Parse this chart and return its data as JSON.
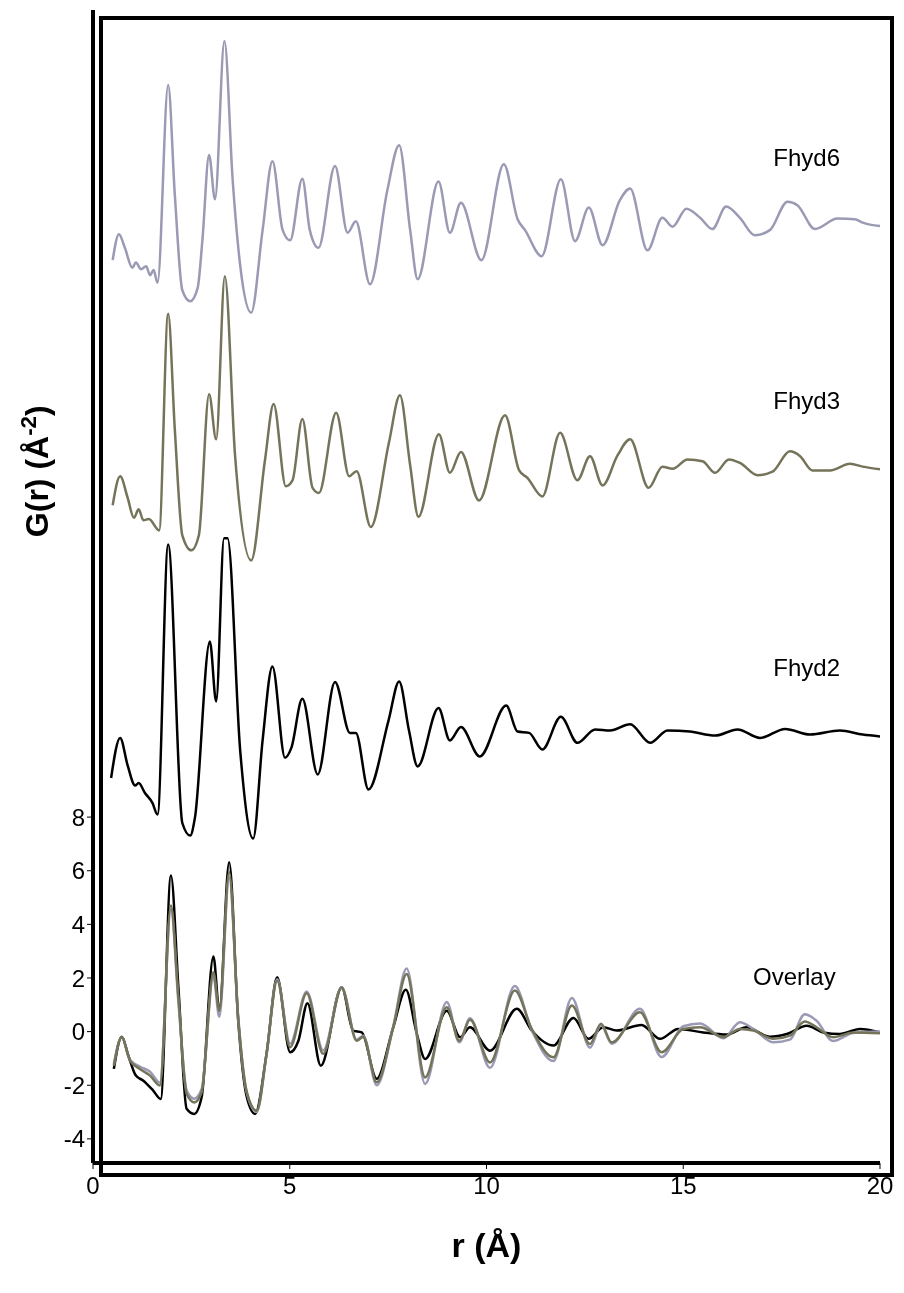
{
  "chart_data": {
    "type": "line",
    "xlabel": "r (Å)",
    "ylabel": "G(r) (Å$^{-2}$)",
    "xlim": [
      0,
      20
    ],
    "xticks": [
      0,
      5,
      10,
      15,
      20
    ],
    "ylim": [
      -4.9,
      38.1
    ],
    "yticks": [
      -4,
      -2,
      0,
      2,
      4,
      6,
      8
    ],
    "annotations": [
      "Overlay"
    ],
    "series": [
      {
        "name": "Fhyd6",
        "color": "#9a9ab4",
        "x": [
          0.5,
          0.66,
          0.81,
          1.0,
          1.09,
          1.22,
          1.35,
          1.45,
          1.54,
          1.64,
          1.91,
          2.08,
          2.27,
          2.47,
          2.66,
          2.78,
          2.95,
          3.1,
          3.34,
          3.55,
          3.74,
          4.02,
          4.31,
          4.56,
          4.82,
          5.01,
          5.32,
          5.51,
          5.73,
          6.15,
          6.47,
          6.68,
          7.04,
          7.48,
          7.78,
          8.06,
          8.25,
          8.78,
          9.07,
          9.35,
          9.87,
          10.44,
          10.79,
          10.98,
          11.4,
          11.89,
          12.25,
          12.6,
          12.95,
          13.39,
          13.65,
          14.09,
          14.47,
          14.73,
          15.08,
          15.43,
          15.74,
          16.09,
          16.44,
          16.82,
          17.2,
          17.65,
          17.9,
          18.35,
          18.92,
          19.36,
          19.56,
          20
        ],
        "values": [
          28.77,
          29.74,
          29.23,
          28.49,
          28.68,
          28.43,
          28.54,
          28.21,
          28.4,
          27.93,
          35.3,
          31.19,
          27.65,
          27.24,
          27.74,
          29.51,
          32.69,
          31.04,
          36.94,
          31.75,
          28.58,
          26.81,
          29.89,
          32.46,
          29.89,
          29.51,
          31.81,
          29.89,
          29.23,
          32.28,
          29.79,
          30.22,
          27.87,
          31.38,
          33.06,
          29.89,
          28.06,
          31.7,
          29.79,
          30.91,
          28.77,
          32.35,
          30.3,
          29.89,
          28.92,
          31.79,
          29.48,
          30.73,
          29.33,
          31.01,
          31.44,
          29.14,
          30.35,
          30.02,
          30.69,
          30.35,
          29.93,
          30.77,
          30.35,
          29.7,
          29.89,
          30.95,
          30.82,
          29.93,
          30.32,
          30.3,
          30.17,
          30.04
        ]
      },
      {
        "name": "Fhyd3",
        "color": "#75745a",
        "x": [
          0.5,
          0.69,
          0.88,
          1.04,
          1.16,
          1.28,
          1.42,
          1.68,
          1.91,
          2.08,
          2.27,
          2.5,
          2.69,
          2.95,
          3.13,
          3.35,
          3.61,
          4.02,
          4.37,
          4.59,
          4.9,
          5.07,
          5.32,
          5.58,
          5.74,
          6.18,
          6.51,
          6.7,
          7.06,
          7.52,
          7.8,
          8.06,
          8.27,
          8.79,
          9.07,
          9.35,
          9.81,
          10.47,
          10.83,
          11.04,
          11.42,
          11.87,
          12.31,
          12.63,
          12.95,
          13.33,
          13.65,
          14.12,
          14.47,
          14.73,
          15.11,
          15.49,
          15.81,
          16.16,
          16.44,
          16.89,
          17.27,
          17.71,
          17.97,
          18.28,
          18.73,
          19.24,
          19.56,
          20
        ],
        "values": [
          19.63,
          20.71,
          19.91,
          19.16,
          19.48,
          19.07,
          19.12,
          18.69,
          26.77,
          22.43,
          18.51,
          17.95,
          18.51,
          23.77,
          22.09,
          28.17,
          21.49,
          17.57,
          21.31,
          23.41,
          20.34,
          20.56,
          22.85,
          20.28,
          20.09,
          23.08,
          20.71,
          20.9,
          18.82,
          21.96,
          23.73,
          21.12,
          19.2,
          22.28,
          20.84,
          21.62,
          19.81,
          22.99,
          20.93,
          20.65,
          19.96,
          22.33,
          20.56,
          21.46,
          20.37,
          21.49,
          22.09,
          20.28,
          21.07,
          20.99,
          21.34,
          21.27,
          20.84,
          21.34,
          21.21,
          20.75,
          20.88,
          21.64,
          21.46,
          20.93,
          20.93,
          21.18,
          21.07,
          20.97
        ]
      },
      {
        "name": "Fhyd2",
        "color": "#000000",
        "x": [
          0.46,
          0.69,
          0.88,
          1.07,
          1.16,
          1.32,
          1.51,
          1.64,
          1.91,
          2.27,
          2.47,
          2.59,
          2.97,
          3.13,
          3.33,
          3.42,
          3.74,
          4.07,
          4.31,
          4.56,
          4.88,
          5.04,
          5.32,
          5.71,
          6.15,
          6.53,
          6.68,
          7.0,
          7.51,
          7.78,
          8.03,
          8.25,
          8.78,
          9.07,
          9.35,
          9.83,
          10.5,
          10.79,
          11.08,
          11.42,
          11.89,
          12.31,
          12.76,
          13.14,
          13.65,
          14.16,
          14.6,
          15.17,
          15.81,
          16.38,
          16.95,
          17.59,
          18.22,
          18.98,
          19.56,
          20
        ],
        "values": [
          9.46,
          10.95,
          9.93,
          9.18,
          9.27,
          8.9,
          8.53,
          8.1,
          18.17,
          7.78,
          7.31,
          7.97,
          14.55,
          12.31,
          18.4,
          18.4,
          10.49,
          7.2,
          10.86,
          13.62,
          10.21,
          10.58,
          12.41,
          9.59,
          13.04,
          11.14,
          11.14,
          9.03,
          11.6,
          13.06,
          11.23,
          9.89,
          12.07,
          10.86,
          11.36,
          10.26,
          12.16,
          11.19,
          11.14,
          10.52,
          11.74,
          10.77,
          11.27,
          11.23,
          11.46,
          10.77,
          11.23,
          11.19,
          11.04,
          11.27,
          10.95,
          11.29,
          11.08,
          11.23,
          11.08,
          11.01
        ]
      },
      {
        "color": "#000000",
        "x": [
          0.53,
          0.73,
          0.9,
          1.09,
          1.28,
          1.53,
          1.72,
          1.98,
          2.17,
          2.38,
          2.57,
          2.76,
          3.06,
          3.21,
          3.46,
          3.69,
          3.91,
          4.12,
          4.41,
          4.68,
          5.01,
          5.22,
          5.45,
          5.79,
          6.32,
          6.61,
          6.83,
          7.21,
          7.63,
          7.95,
          8.23,
          8.44,
          8.99,
          9.33,
          9.58,
          10.09,
          10.77,
          11.15,
          11.7,
          12.21,
          12.59,
          12.97,
          13.31,
          13.94,
          14.41,
          14.87,
          15.51,
          16.1,
          16.61,
          17.2,
          17.63,
          18.14,
          18.56,
          18.98,
          19.49,
          20
        ],
        "values": [
          -1.39,
          -0.19,
          -0.9,
          -1.64,
          -1.83,
          -2.2,
          -2.51,
          5.82,
          1.65,
          -2.88,
          -3.07,
          -2.45,
          2.8,
          0.78,
          6.32,
          0.41,
          -2.45,
          -3.07,
          -0.83,
          2.03,
          -0.77,
          -0.34,
          1.06,
          -1.27,
          1.65,
          0.04,
          -0.03,
          -1.76,
          0.16,
          1.56,
          -0.09,
          -1.02,
          0.78,
          -0.21,
          0.16,
          -0.71,
          0.85,
          0.04,
          -0.52,
          0.51,
          -0.27,
          0.16,
          0.04,
          0.25,
          -0.27,
          0.1,
          -0.03,
          -0.11,
          0.16,
          -0.19,
          -0.09,
          0.22,
          -0.03,
          -0.09,
          0.1,
          -0.03
        ]
      },
      {
        "color": "#9a9ab4",
        "x": [
          0.53,
          0.73,
          0.94,
          1.19,
          1.45,
          1.7,
          1.98,
          2.17,
          2.38,
          2.57,
          2.76,
          3.06,
          3.21,
          3.46,
          3.69,
          3.91,
          4.16,
          4.41,
          4.68,
          5.01,
          5.43,
          5.85,
          6.32,
          6.7,
          6.87,
          7.21,
          7.63,
          7.97,
          8.44,
          8.99,
          9.31,
          9.58,
          10.09,
          10.72,
          11.15,
          11.7,
          12.17,
          12.63,
          12.91,
          13.18,
          13.9,
          14.45,
          15.0,
          15.43,
          16.02,
          16.44,
          16.78,
          17.29,
          17.71,
          18.09,
          18.39,
          18.81,
          19.32,
          20
        ],
        "values": [
          -1.2,
          -0.21,
          -1.05,
          -1.3,
          -1.5,
          -1.9,
          4.55,
          1.1,
          -2.2,
          -2.5,
          -2.15,
          2.05,
          0.55,
          5.75,
          0.5,
          -2.3,
          -3.0,
          -0.85,
          1.95,
          -0.45,
          1.5,
          -0.7,
          1.65,
          -0.3,
          -0.15,
          -2.0,
          0.2,
          2.35,
          -1.95,
          1.1,
          -0.4,
          0.5,
          -1.35,
          1.7,
          0.05,
          -1.1,
          1.25,
          -0.6,
          0.25,
          -0.45,
          0.85,
          -0.95,
          0.2,
          0.3,
          -0.25,
          0.35,
          0.1,
          -0.4,
          -0.3,
          0.65,
          0.4,
          -0.35,
          -0.05,
          0.0
        ]
      },
      {
        "color": "#75745a",
        "x": [
          0.53,
          0.73,
          0.94,
          1.19,
          1.45,
          1.7,
          1.98,
          2.17,
          2.38,
          2.57,
          2.76,
          3.06,
          3.21,
          3.46,
          3.69,
          3.91,
          4.16,
          4.41,
          4.68,
          5.01,
          5.43,
          5.85,
          6.32,
          6.7,
          6.87,
          7.21,
          7.63,
          7.97,
          8.44,
          8.99,
          9.31,
          9.58,
          10.09,
          10.72,
          11.15,
          11.7,
          12.17,
          12.63,
          12.91,
          13.18,
          13.9,
          14.45,
          15.0,
          15.43,
          16.02,
          16.44,
          16.78,
          17.29,
          17.71,
          18.09,
          18.39,
          18.81,
          19.32,
          20
        ],
        "values": [
          -1.27,
          -0.21,
          -1.08,
          -1.39,
          -1.64,
          -2.01,
          4.7,
          1.28,
          -2.32,
          -2.64,
          -2.26,
          2.21,
          0.78,
          5.94,
          0.53,
          -2.26,
          -2.95,
          -0.83,
          1.9,
          -0.58,
          1.43,
          -0.83,
          1.63,
          -0.34,
          -0.19,
          -1.89,
          0.16,
          2.15,
          -1.71,
          0.91,
          -0.34,
          0.44,
          -1.15,
          1.53,
          0.1,
          -0.96,
          0.97,
          -0.46,
          0.29,
          -0.4,
          0.72,
          -0.77,
          0.1,
          0.16,
          -0.21,
          0.1,
          0.04,
          -0.27,
          -0.15,
          0.38,
          0.16,
          -0.21,
          -0.03,
          -0.06
        ]
      }
    ]
  }
}
